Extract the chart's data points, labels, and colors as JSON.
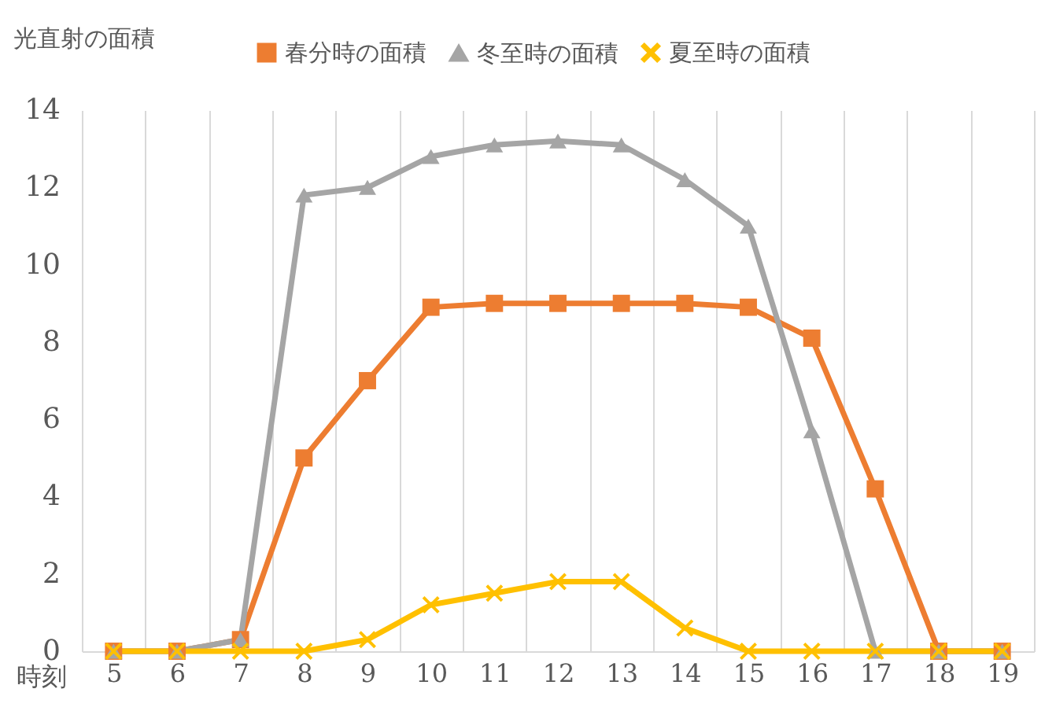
{
  "chart_data": {
    "type": "line",
    "ylabel": "光直射の面積",
    "xlabel": "時刻",
    "categories": [
      "5",
      "6",
      "7",
      "8",
      "9",
      "10",
      "11",
      "12",
      "13",
      "14",
      "15",
      "16",
      "17",
      "18",
      "19"
    ],
    "series": [
      {
        "name": "春分時の面積",
        "color": "#ed7d31",
        "marker": "square",
        "values": [
          0,
          0,
          0.3,
          5,
          7,
          8.9,
          9,
          9,
          9,
          9,
          8.9,
          8.1,
          4.2,
          0,
          0
        ]
      },
      {
        "name": "冬至時の面積",
        "color": "#a5a5a5",
        "marker": "triangle",
        "values": [
          0,
          0,
          0.3,
          11.8,
          12,
          12.8,
          13.1,
          13.2,
          13.1,
          12.2,
          11,
          5.7,
          0,
          0,
          0
        ]
      },
      {
        "name": "夏至時の面積",
        "color": "#ffc000",
        "marker": "cross",
        "values": [
          0,
          0,
          0,
          0,
          0.3,
          1.2,
          1.5,
          1.8,
          1.8,
          0.6,
          0,
          0,
          0,
          0,
          0
        ]
      }
    ],
    "ylim": [
      0,
      14
    ],
    "yticks": [
      0,
      2,
      4,
      6,
      8,
      10,
      12,
      14
    ],
    "grid": "x",
    "legend": "top",
    "line_style": "solid"
  }
}
